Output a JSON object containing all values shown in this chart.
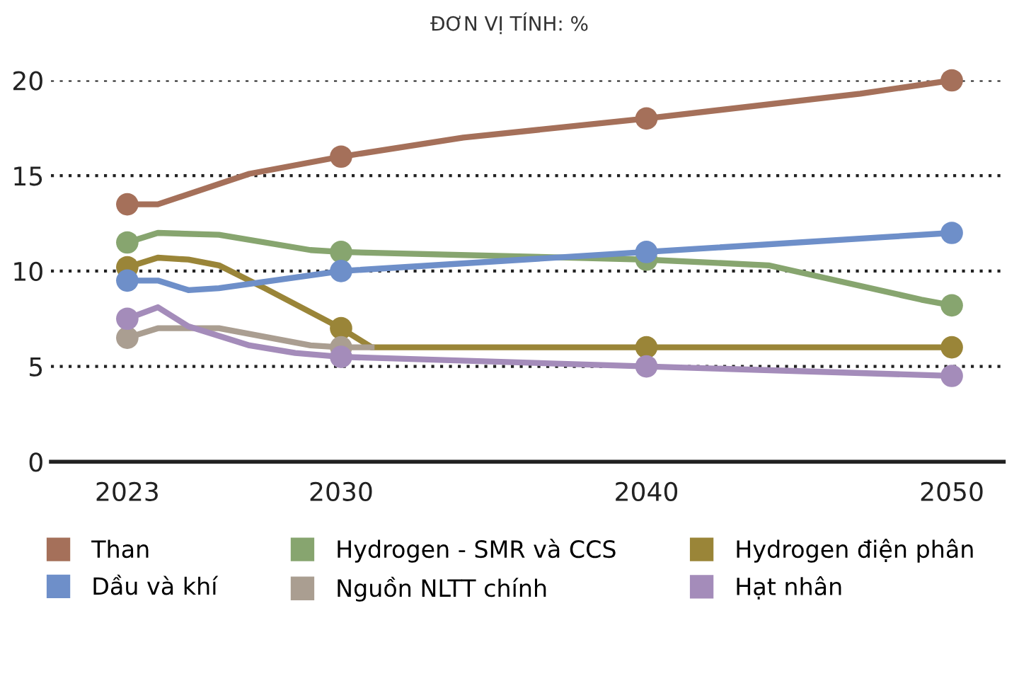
{
  "chart_data": {
    "type": "line",
    "subtitle": "ĐƠN VỊ TÍNH: %",
    "xlim": [
      2020.5,
      2051.7
    ],
    "xticks": [
      2023,
      2030,
      2040,
      2050
    ],
    "ylim": [
      0,
      20
    ],
    "yticks": [
      0,
      5,
      10,
      15,
      20
    ],
    "grid": "y",
    "legend": "bottom",
    "line_style": "solid",
    "series": [
      {
        "name": "Than",
        "color": "#a5705a",
        "x": [
          2023,
          2024,
          2027,
          2030,
          2034,
          2040,
          2047,
          2050
        ],
        "values": [
          13.5,
          13.5,
          15.1,
          16,
          17,
          18,
          19.3,
          20
        ]
      },
      {
        "name": "Hydrogen - SMR và CCS",
        "color": "#87a56f",
        "x": [
          2023,
          2024,
          2026,
          2029,
          2030,
          2040,
          2044,
          2049,
          2050
        ],
        "values": [
          11.5,
          12,
          11.9,
          11.1,
          11,
          10.6,
          10.3,
          8.5,
          8.2
        ]
      },
      {
        "name": "Hydrogen điện phân",
        "color": "#9a8538",
        "x": [
          2023,
          2024,
          2025,
          2026,
          2027.5,
          2030,
          2031,
          2040,
          2050
        ],
        "values": [
          10.2,
          10.7,
          10.6,
          10.3,
          9.1,
          7,
          6,
          6,
          6
        ]
      },
      {
        "name": "Dầu và khí",
        "color": "#6e8fc9",
        "x": [
          2023,
          2024,
          2025,
          2026,
          2030,
          2040,
          2048,
          2050
        ],
        "values": [
          9.5,
          9.5,
          9,
          9.1,
          10,
          11,
          11.8,
          12
        ]
      },
      {
        "name": "Nguồn NLTT chính",
        "color": "#aa9e91",
        "x": [
          2023,
          2024,
          2026,
          2029,
          2030,
          2031
        ],
        "values": [
          6.5,
          7,
          7,
          6.1,
          6,
          6
        ]
      },
      {
        "name": "Hạt nhân",
        "color": "#a48cba",
        "x": [
          2023,
          2024,
          2025,
          2027,
          2028.5,
          2030,
          2040,
          2050
        ],
        "values": [
          7.5,
          8.1,
          7.1,
          6.1,
          5.7,
          5.5,
          5,
          4.5
        ]
      },
      {
        "type": "scatter",
        "marker": "circle",
        "color": "#a5705a",
        "x": [
          2023,
          2030,
          2040,
          2050
        ],
        "values": [
          13.5,
          16,
          18,
          20
        ]
      },
      {
        "type": "scatter",
        "marker": "circle",
        "color": "#87a56f",
        "x": [
          2023,
          2030,
          2040,
          2050
        ],
        "values": [
          11.5,
          11,
          10.6,
          8.2
        ]
      },
      {
        "type": "scatter",
        "marker": "circle",
        "color": "#9a8538",
        "x": [
          2023,
          2030,
          2040,
          2050
        ],
        "values": [
          10.2,
          7,
          6,
          6
        ]
      },
      {
        "type": "scatter",
        "marker": "circle",
        "color": "#6e8fc9",
        "x": [
          2023,
          2030,
          2040,
          2050
        ],
        "values": [
          9.5,
          10,
          11,
          12
        ]
      },
      {
        "type": "scatter",
        "marker": "circle",
        "color": "#aa9e91",
        "x": [
          2023,
          2030
        ],
        "values": [
          6.5,
          6
        ]
      },
      {
        "type": "scatter",
        "marker": "circle",
        "color": "#a48cba",
        "x": [
          2023,
          2030,
          2040,
          2050
        ],
        "values": [
          7.5,
          5.5,
          5,
          4.5
        ]
      }
    ]
  }
}
